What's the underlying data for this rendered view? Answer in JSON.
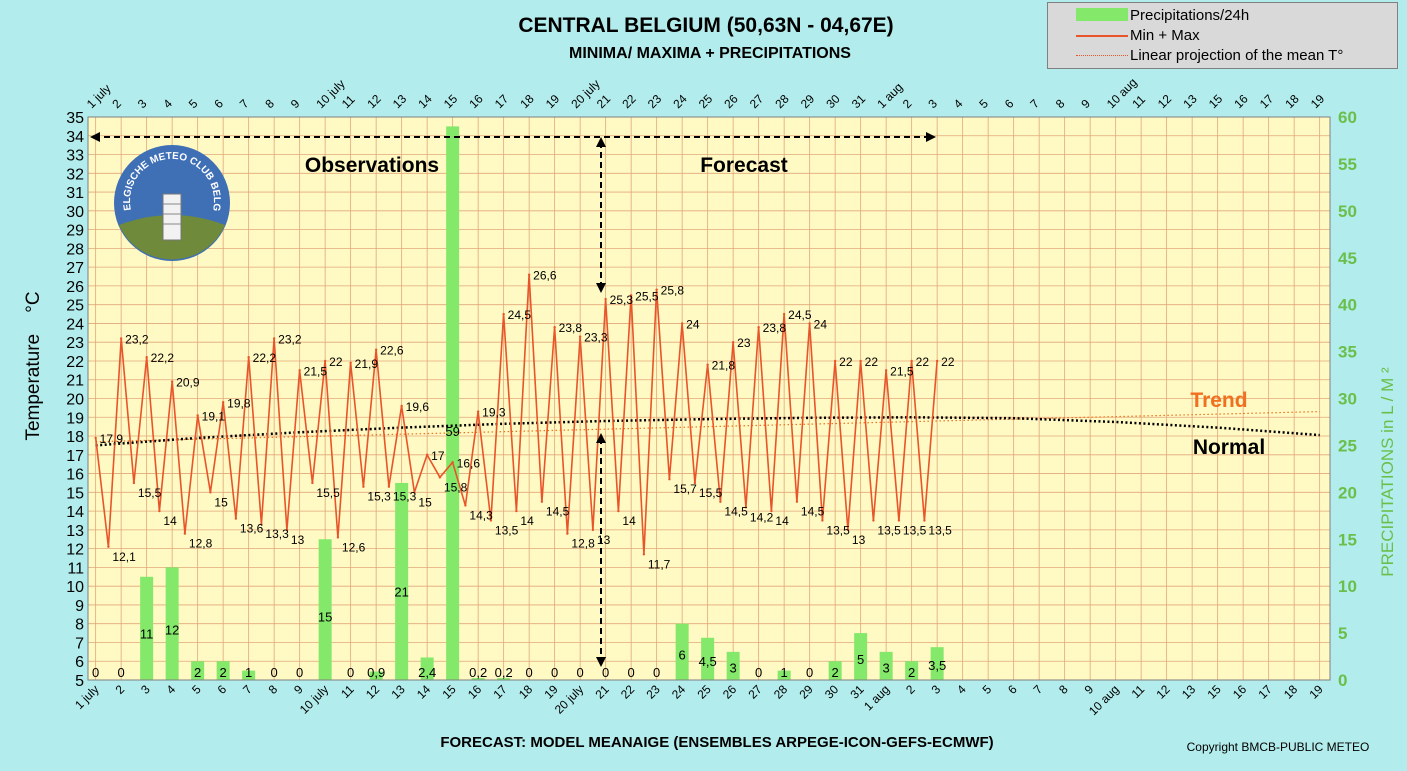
{
  "title": "CENTRAL BELGIUM (50,63N - 04,67E)",
  "subtitle": "MINIMA/ MAXIMA + PRECIPITATIONS",
  "footer": "FORECAST: MODEL MEANAIGE (ENSEMBLES ARPEGE-ICON-GEFS-ECMWF)",
  "copyright": "Copyright BMCB-PUBLIC METEO",
  "legend": {
    "precip": "Precipitations/24h",
    "minmax": "Min + Max",
    "linear": "Linear projection of the mean T°"
  },
  "annotations": {
    "observations": "Observations",
    "forecast": "Forecast",
    "trend": "Trend",
    "normal": "Normal",
    "logo_text": "BELGISCHE METEO CLUB BELGE"
  },
  "colors": {
    "background": "#b3ecec",
    "plot_background": "#fff9c4",
    "grid": "#e0a878",
    "precip_bar": "#84e96a",
    "minmax_line": "#e8552a",
    "trend": "#f07020",
    "normal": "#000000",
    "right_axis": "#6abf4b"
  },
  "chart_data": {
    "type": "line",
    "xlabel": "",
    "ylabel": "Temperature    °C",
    "y2label": "PRECIPITATIONS in L / M ²",
    "ylim": [
      5,
      35
    ],
    "y2lim": [
      0,
      60
    ],
    "grid": true,
    "legend_position": "top-right",
    "x_tick_labels": [
      "1 july",
      "2",
      "3",
      "4",
      "5",
      "6",
      "7",
      "8",
      "9",
      "10 july",
      "11",
      "12",
      "13",
      "14",
      "15",
      "16",
      "17",
      "18",
      "19",
      "20 july",
      "21",
      "22",
      "23",
      "24",
      "25",
      "26",
      "27",
      "28",
      "29",
      "30",
      "31",
      "1 aug",
      "2",
      "3",
      "4",
      "5",
      "6",
      "7",
      "8",
      "9",
      "10 aug",
      "11",
      "12",
      "13",
      "15",
      "16",
      "17",
      "18",
      "19"
    ],
    "series": [
      {
        "name": "Min + Max",
        "points": [
          {
            "x": 0.0,
            "y": 17.9,
            "label": "17,9"
          },
          {
            "x": 0.5,
            "y": 12.1,
            "label": "12,1"
          },
          {
            "x": 1.0,
            "y": 23.2,
            "label": "23,2"
          },
          {
            "x": 1.5,
            "y": 15.5,
            "label": "15,5"
          },
          {
            "x": 2.0,
            "y": 22.2,
            "label": "22,2"
          },
          {
            "x": 2.5,
            "y": 14.0,
            "label": "14"
          },
          {
            "x": 3.0,
            "y": 20.9,
            "label": "20,9"
          },
          {
            "x": 3.5,
            "y": 12.8,
            "label": "12,8"
          },
          {
            "x": 4.0,
            "y": 19.1,
            "label": "19,1"
          },
          {
            "x": 4.5,
            "y": 15.0,
            "label": "15"
          },
          {
            "x": 5.0,
            "y": 19.8,
            "label": "19,8"
          },
          {
            "x": 5.5,
            "y": 13.6,
            "label": "13,6"
          },
          {
            "x": 6.0,
            "y": 22.2,
            "label": "22,2"
          },
          {
            "x": 6.5,
            "y": 13.3,
            "label": "13,3"
          },
          {
            "x": 7.0,
            "y": 23.2,
            "label": "23,2"
          },
          {
            "x": 7.5,
            "y": 13.0,
            "label": "13"
          },
          {
            "x": 8.0,
            "y": 21.5,
            "label": "21,5"
          },
          {
            "x": 8.5,
            "y": 15.5,
            "label": "15,5"
          },
          {
            "x": 9.0,
            "y": 22.0,
            "label": "22"
          },
          {
            "x": 9.5,
            "y": 12.6,
            "label": "12,6"
          },
          {
            "x": 10.0,
            "y": 21.9,
            "label": "21,9"
          },
          {
            "x": 10.5,
            "y": 15.3,
            "label": "15,3"
          },
          {
            "x": 11.0,
            "y": 22.6,
            "label": "22,6"
          },
          {
            "x": 11.5,
            "y": 15.3,
            "label": "15,3"
          },
          {
            "x": 12.0,
            "y": 19.6,
            "label": "19,6"
          },
          {
            "x": 12.5,
            "y": 15.0,
            "label": "15"
          },
          {
            "x": 13.0,
            "y": 17.0,
            "label": "17"
          },
          {
            "x": 13.5,
            "y": 15.8,
            "label": "15,8"
          },
          {
            "x": 14.0,
            "y": 16.6,
            "label": "16,6"
          },
          {
            "x": 14.5,
            "y": 14.3,
            "label": "14,3"
          },
          {
            "x": 15.0,
            "y": 19.3,
            "label": "19,3"
          },
          {
            "x": 15.5,
            "y": 13.5,
            "label": "13,5"
          },
          {
            "x": 16.0,
            "y": 24.5,
            "label": "24,5"
          },
          {
            "x": 16.5,
            "y": 14.0,
            "label": "14"
          },
          {
            "x": 17.0,
            "y": 26.6,
            "label": "26,6"
          },
          {
            "x": 17.5,
            "y": 14.5,
            "label": "14,5"
          },
          {
            "x": 18.0,
            "y": 23.8,
            "label": "23,8"
          },
          {
            "x": 18.5,
            "y": 12.8,
            "label": "12,8"
          },
          {
            "x": 19.0,
            "y": 23.3,
            "label": "23,3"
          },
          {
            "x": 19.5,
            "y": 13.0,
            "label": "13"
          },
          {
            "x": 20.0,
            "y": 25.3,
            "label": "25,3"
          },
          {
            "x": 20.5,
            "y": 14.0,
            "label": "14"
          },
          {
            "x": 21.0,
            "y": 25.5,
            "label": "25,5"
          },
          {
            "x": 21.5,
            "y": 11.7,
            "label": "11,7"
          },
          {
            "x": 22.0,
            "y": 25.8,
            "label": "25,8"
          },
          {
            "x": 22.5,
            "y": 15.7,
            "label": "15,7"
          },
          {
            "x": 23.0,
            "y": 24.0,
            "label": "24"
          },
          {
            "x": 23.5,
            "y": 15.5,
            "label": "15,5"
          },
          {
            "x": 24.0,
            "y": 21.8,
            "label": "21,8"
          },
          {
            "x": 24.5,
            "y": 14.5,
            "label": "14,5"
          },
          {
            "x": 25.0,
            "y": 23.0,
            "label": "23"
          },
          {
            "x": 25.5,
            "y": 14.2,
            "label": "14,2"
          },
          {
            "x": 26.0,
            "y": 23.8,
            "label": "23,8"
          },
          {
            "x": 26.5,
            "y": 14.0,
            "label": "14"
          },
          {
            "x": 27.0,
            "y": 24.5,
            "label": "24,5"
          },
          {
            "x": 27.5,
            "y": 14.5,
            "label": "14,5"
          },
          {
            "x": 28.0,
            "y": 24.0,
            "label": "24"
          },
          {
            "x": 28.5,
            "y": 13.5,
            "label": "13,5"
          },
          {
            "x": 29.0,
            "y": 22.0,
            "label": "22"
          },
          {
            "x": 29.5,
            "y": 13.0,
            "label": "13"
          },
          {
            "x": 30.0,
            "y": 22.0,
            "label": "22"
          },
          {
            "x": 30.5,
            "y": 13.5,
            "label": "13,5"
          },
          {
            "x": 31.0,
            "y": 21.5,
            "label": "21,5"
          },
          {
            "x": 31.5,
            "y": 13.5,
            "label": "13,5"
          },
          {
            "x": 32.0,
            "y": 22.0,
            "label": "22"
          },
          {
            "x": 32.5,
            "y": 13.5,
            "label": "13,5"
          },
          {
            "x": 33.0,
            "y": 22.0,
            "label": "22"
          }
        ]
      },
      {
        "name": "Precipitations/24h",
        "axis": "right",
        "values": [
          0,
          0,
          11,
          12,
          2,
          2,
          1,
          0,
          0,
          15,
          0,
          0.9,
          21,
          2.4,
          59,
          0.2,
          0.2,
          0,
          0,
          0,
          0,
          0,
          0,
          6,
          4.5,
          3,
          0,
          1,
          0,
          2,
          5,
          3,
          2,
          3.5
        ],
        "labels": [
          "0",
          "0",
          "11",
          "12",
          "2",
          "2",
          "1",
          "0",
          "0",
          "15",
          "0",
          "0,9",
          "21",
          "2,4",
          "59",
          "0,2",
          "0,2",
          "0",
          "0",
          "0",
          "0",
          "0",
          "0",
          "6",
          "4,5",
          "3",
          "0",
          "1",
          "0",
          "2",
          "5",
          "3",
          "2",
          "3,5"
        ]
      },
      {
        "name": "Linear projection of the mean T°",
        "x": [
          0,
          48
        ],
        "y": [
          17.7,
          19.3
        ]
      },
      {
        "name": "Normal",
        "x": [
          0,
          4,
          8,
          12,
          16,
          20,
          24,
          28,
          32,
          36,
          40,
          44,
          48
        ],
        "y": [
          17.5,
          17.9,
          18.2,
          18.45,
          18.65,
          18.8,
          18.9,
          18.97,
          19.0,
          18.95,
          18.75,
          18.45,
          18.05
        ]
      }
    ]
  }
}
